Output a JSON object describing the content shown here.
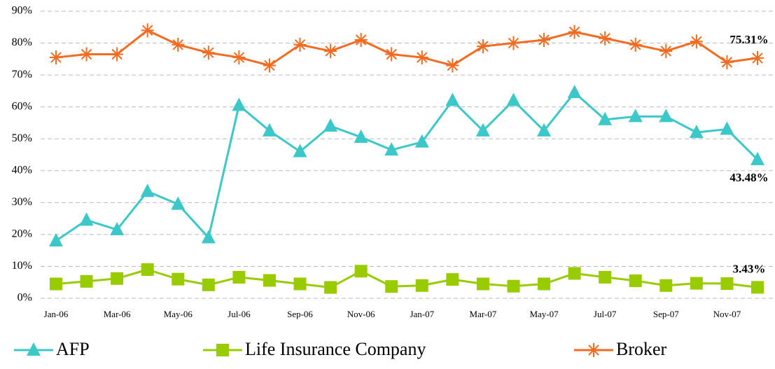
{
  "chart_data": {
    "type": "line",
    "categories": [
      "Jan-06",
      null,
      "Mar-06",
      null,
      "May-06",
      null,
      "Jul-06",
      null,
      "Sep-06",
      null,
      "Nov-06",
      null,
      "Jan-07",
      null,
      "Mar-07",
      null,
      "May-07",
      null,
      "Jul-07",
      null,
      "Sep-07",
      null,
      "Nov-07",
      null
    ],
    "series": [
      {
        "name": "AFP",
        "color": "#3cc8c8",
        "marker": "triangle",
        "values": [
          18,
          24.5,
          21.5,
          33.5,
          29.5,
          19,
          60.5,
          52.5,
          46,
          54,
          50.5,
          46.5,
          49,
          62,
          52.5,
          62,
          52.5,
          64.5,
          56,
          57,
          57,
          52,
          53,
          43.48
        ],
        "value_labels": [
          null,
          null,
          null,
          null,
          null,
          null,
          null,
          null,
          null,
          null,
          null,
          null,
          null,
          null,
          null,
          null,
          null,
          null,
          null,
          null,
          null,
          null,
          null,
          "43.48%"
        ]
      },
      {
        "name": "Life Insurance Company",
        "color": "#99cc00",
        "marker": "square",
        "values": [
          4.5,
          5.3,
          6.2,
          9,
          6,
          4.2,
          6.6,
          5.6,
          4.5,
          3.4,
          8.5,
          3.7,
          4,
          5.9,
          4.5,
          3.8,
          4.5,
          7.8,
          6.6,
          5.5,
          4,
          4.7,
          4.6,
          3.43
        ],
        "value_labels": [
          null,
          null,
          null,
          null,
          null,
          null,
          null,
          null,
          null,
          null,
          null,
          null,
          null,
          null,
          null,
          null,
          null,
          null,
          null,
          null,
          null,
          null,
          null,
          "3.43%"
        ]
      },
      {
        "name": "Broker",
        "color": "#f26b21",
        "marker": "asterisk",
        "values": [
          75.5,
          76.5,
          76.5,
          84,
          79.5,
          77,
          75.5,
          73,
          79.5,
          77.5,
          81,
          76.5,
          75.5,
          73,
          79,
          80,
          81,
          83.5,
          81.5,
          79.5,
          77.5,
          80.5,
          74,
          75.31
        ],
        "value_labels": [
          null,
          null,
          null,
          null,
          null,
          null,
          null,
          null,
          null,
          null,
          null,
          null,
          null,
          null,
          null,
          null,
          null,
          null,
          null,
          null,
          null,
          null,
          null,
          "75.31%"
        ]
      }
    ],
    "ylim": [
      0,
      90
    ],
    "yticks": [
      {
        "value": 0,
        "label": "0%"
      },
      {
        "value": 10,
        "label": "10%"
      },
      {
        "value": 20,
        "label": "20%"
      },
      {
        "value": 30,
        "label": "30%"
      },
      {
        "value": 40,
        "label": "40%"
      },
      {
        "value": 50,
        "label": "50%"
      },
      {
        "value": 60,
        "label": "60%"
      },
      {
        "value": 70,
        "label": "70%"
      },
      {
        "value": 80,
        "label": "80%"
      },
      {
        "value": 90,
        "label": "90%"
      }
    ],
    "grid": true,
    "legend": "bottom"
  }
}
